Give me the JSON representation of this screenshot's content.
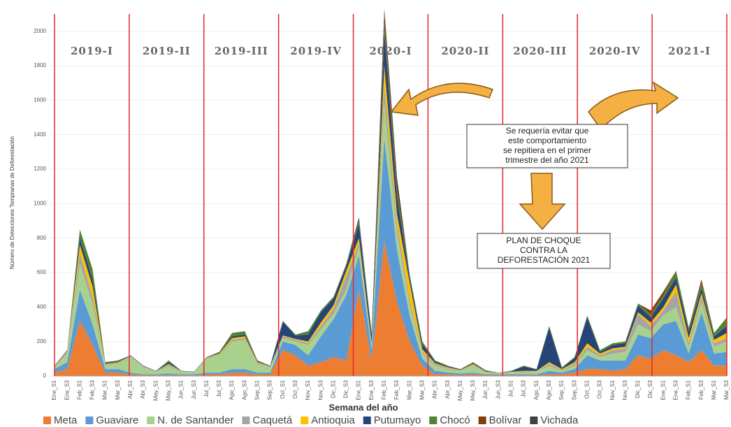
{
  "chart_data": {
    "type": "stacked-area",
    "y_label": "Número de Detecciones Tempranas de Deforestación",
    "x_label": "Semana del año",
    "categories": [
      "Ene_S1",
      "Ene_S3",
      "Feb_S1",
      "Feb_S3",
      "Mar_S1",
      "Mar_S3",
      "Abr_S1",
      "Abr_S3",
      "May_S1",
      "May_S3",
      "Jun_S1",
      "Jun_S3",
      "Jul_S1",
      "Jul_S3",
      "Ago_S1",
      "Ago_S3",
      "Sep_S1",
      "Sep_S3",
      "Oct_S1",
      "Oct_S3",
      "Nov_S1",
      "Nov_S3",
      "Dic_S1",
      "Dic_S3",
      "Ene_S1",
      "Ene_S3",
      "Feb_S1",
      "Feb_S3",
      "Mar_S1",
      "Mar_S3",
      "Abr_S1",
      "Abr_S3",
      "May_S1",
      "May_S3",
      "Jun_S1",
      "Jun_S3",
      "Jul_S1",
      "Jul_S3",
      "Ago_S1",
      "Ago_S3",
      "Sep_S1",
      "Sep_S3",
      "Oct_S1",
      "Oct_S3",
      "Nov_S1",
      "Nov_S3",
      "Dic_S1",
      "Dic_S3",
      "Ene_S1",
      "Ene_S3",
      "Feb_S1",
      "Feb_S3",
      "Mar_S1",
      "Mar_S3"
    ],
    "periods": [
      "2019-I",
      "2019-II",
      "2019-III",
      "2019-IV",
      "2020-I",
      "2020-II",
      "2020-III",
      "2020-IV",
      "2021-I"
    ],
    "period_color": "#e8262a",
    "series": [
      {
        "name": "Meta",
        "color": "#ed7d31",
        "values": [
          20,
          40,
          320,
          180,
          20,
          20,
          10,
          5,
          5,
          5,
          5,
          5,
          10,
          10,
          20,
          20,
          10,
          10,
          150,
          120,
          60,
          80,
          110,
          90,
          500,
          90,
          780,
          430,
          200,
          60,
          10,
          10,
          5,
          10,
          5,
          5,
          5,
          5,
          5,
          10,
          10,
          20,
          40,
          40,
          30,
          40,
          120,
          100,
          150,
          120,
          80,
          150,
          60,
          60
        ]
      },
      {
        "name": "Guaviare",
        "color": "#5b9bd5",
        "values": [
          20,
          40,
          180,
          120,
          20,
          20,
          10,
          5,
          5,
          10,
          5,
          5,
          10,
          10,
          20,
          20,
          10,
          10,
          50,
          60,
          60,
          150,
          220,
          380,
          200,
          60,
          600,
          300,
          150,
          40,
          20,
          10,
          10,
          10,
          5,
          5,
          5,
          5,
          5,
          20,
          10,
          20,
          80,
          50,
          60,
          50,
          120,
          120,
          150,
          200,
          50,
          220,
          70,
          80
        ]
      },
      {
        "name": "N. de Santander",
        "color": "#a9d18e",
        "values": [
          10,
          50,
          150,
          120,
          20,
          30,
          90,
          40,
          15,
          40,
          15,
          10,
          80,
          100,
          160,
          170,
          50,
          30,
          20,
          20,
          60,
          40,
          30,
          30,
          50,
          20,
          200,
          100,
          60,
          30,
          30,
          20,
          15,
          40,
          10,
          5,
          10,
          10,
          15,
          30,
          10,
          20,
          30,
          20,
          40,
          50,
          60,
          40,
          50,
          80,
          40,
          60,
          40,
          60
        ]
      },
      {
        "name": "Caquetá",
        "color": "#a5a5a5",
        "values": [
          5,
          10,
          60,
          40,
          5,
          5,
          5,
          5,
          2,
          10,
          2,
          2,
          5,
          5,
          10,
          10,
          5,
          5,
          10,
          10,
          10,
          20,
          30,
          80,
          20,
          10,
          100,
          50,
          30,
          10,
          10,
          5,
          3,
          5,
          3,
          2,
          3,
          5,
          3,
          10,
          5,
          10,
          20,
          10,
          20,
          20,
          60,
          30,
          30,
          90,
          20,
          30,
          20,
          20
        ]
      },
      {
        "name": "Antioquia",
        "color": "#ffc000",
        "values": [
          2,
          5,
          50,
          60,
          5,
          5,
          2,
          2,
          1,
          5,
          1,
          1,
          2,
          5,
          10,
          10,
          5,
          2,
          5,
          5,
          10,
          20,
          20,
          30,
          30,
          10,
          120,
          60,
          100,
          15,
          5,
          5,
          2,
          5,
          2,
          1,
          2,
          5,
          2,
          10,
          5,
          10,
          20,
          10,
          10,
          10,
          10,
          20,
          20,
          40,
          30,
          20,
          20,
          30
        ]
      },
      {
        "name": "Putumayo",
        "color": "#264478",
        "values": [
          3,
          5,
          40,
          40,
          5,
          5,
          3,
          3,
          2,
          10,
          2,
          2,
          3,
          5,
          10,
          10,
          5,
          3,
          80,
          20,
          40,
          60,
          40,
          30,
          80,
          50,
          200,
          100,
          30,
          30,
          10,
          5,
          3,
          5,
          3,
          1,
          3,
          25,
          8,
          200,
          5,
          25,
          150,
          10,
          20,
          20,
          40,
          30,
          50,
          40,
          40,
          30,
          20,
          40
        ]
      },
      {
        "name": "Chocó",
        "color": "#548235",
        "values": [
          0,
          0,
          50,
          60,
          5,
          5,
          0,
          0,
          0,
          10,
          0,
          0,
          0,
          5,
          20,
          20,
          5,
          0,
          5,
          5,
          20,
          10,
          10,
          10,
          20,
          10,
          50,
          30,
          20,
          15,
          5,
          5,
          2,
          5,
          5,
          1,
          2,
          5,
          2,
          10,
          5,
          5,
          10,
          10,
          10,
          10,
          10,
          20,
          20,
          40,
          20,
          30,
          20,
          50
        ]
      },
      {
        "name": "Bolívar",
        "color": "#843c0c",
        "values": [
          0,
          0,
          0,
          0,
          0,
          0,
          0,
          0,
          0,
          0,
          0,
          0,
          0,
          0,
          0,
          0,
          0,
          0,
          0,
          0,
          0,
          0,
          0,
          0,
          0,
          0,
          50,
          30,
          0,
          0,
          0,
          0,
          0,
          0,
          0,
          0,
          0,
          0,
          0,
          0,
          0,
          0,
          0,
          0,
          0,
          0,
          0,
          20,
          20,
          0,
          0,
          20,
          0,
          0
        ]
      },
      {
        "name": "Vichada",
        "color": "#404040",
        "values": [
          0,
          0,
          0,
          0,
          0,
          0,
          0,
          0,
          0,
          0,
          0,
          0,
          0,
          0,
          0,
          0,
          0,
          0,
          0,
          0,
          0,
          0,
          0,
          0,
          20,
          0,
          30,
          50,
          0,
          0,
          0,
          0,
          0,
          0,
          0,
          0,
          0,
          0,
          0,
          0,
          0,
          0,
          0,
          0,
          0,
          0,
          0,
          0,
          0,
          0,
          0,
          0,
          0,
          0
        ]
      }
    ],
    "ylim": [
      0,
      2100
    ],
    "yticks": [
      0,
      200,
      400,
      600,
      800,
      1000,
      1200,
      1400,
      1600,
      1800,
      2000
    ],
    "note": [
      "Se requería evitar que",
      "este comportamiento",
      "se repitiera en el primer",
      "trimestre del año 2021"
    ],
    "plan": [
      "PLAN DE CHOQUE",
      "CONTRA LA",
      "DEFORESTACIÓN 2021"
    ]
  }
}
